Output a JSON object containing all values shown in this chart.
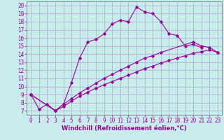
{
  "xlabel": "Windchill (Refroidissement éolien,°C)",
  "bg_color": "#c8ecec",
  "line_color": "#990099",
  "grid_color": "#aaaacc",
  "xlim": [
    -0.5,
    23.5
  ],
  "ylim": [
    6.5,
    20.5
  ],
  "xticks": [
    0,
    1,
    2,
    3,
    4,
    5,
    6,
    7,
    8,
    9,
    10,
    11,
    12,
    13,
    14,
    15,
    16,
    17,
    18,
    19,
    20,
    21,
    22,
    23
  ],
  "yticks": [
    7,
    8,
    9,
    10,
    11,
    12,
    13,
    14,
    15,
    16,
    17,
    18,
    19,
    20
  ],
  "line1_x": [
    0,
    1,
    2,
    3,
    4,
    5,
    6,
    7,
    8,
    9,
    10,
    11,
    12,
    13,
    14,
    15,
    16,
    17,
    18,
    19,
    20,
    21
  ],
  "line1_y": [
    9,
    7.2,
    7.8,
    7.0,
    7.8,
    10.5,
    13.5,
    15.5,
    15.8,
    16.5,
    17.7,
    18.2,
    18.0,
    19.8,
    19.2,
    19.0,
    18.0,
    16.5,
    16.3,
    15.0,
    15.2,
    14.8
  ],
  "line2_x": [
    0,
    3,
    4,
    5,
    6,
    7,
    8,
    9,
    10,
    11,
    12,
    13,
    14,
    15,
    16,
    20,
    21,
    22,
    23
  ],
  "line2_y": [
    9,
    7.0,
    7.8,
    8.5,
    9.2,
    9.8,
    10.4,
    11.0,
    11.5,
    12.0,
    12.5,
    13.0,
    13.5,
    13.8,
    14.2,
    15.5,
    15.0,
    14.8,
    14.2
  ],
  "line3_x": [
    0,
    3,
    4,
    5,
    6,
    7,
    8,
    9,
    10,
    11,
    12,
    13,
    14,
    15,
    16,
    17,
    18,
    19,
    20,
    21,
    22,
    23
  ],
  "line3_y": [
    9,
    7.0,
    7.5,
    8.2,
    8.8,
    9.3,
    9.8,
    10.2,
    10.6,
    11.0,
    11.4,
    11.8,
    12.2,
    12.5,
    12.9,
    13.2,
    13.5,
    13.8,
    14.1,
    14.3,
    14.5,
    14.2
  ],
  "tick_fontsize": 5.5,
  "xlabel_fontsize": 6.0
}
